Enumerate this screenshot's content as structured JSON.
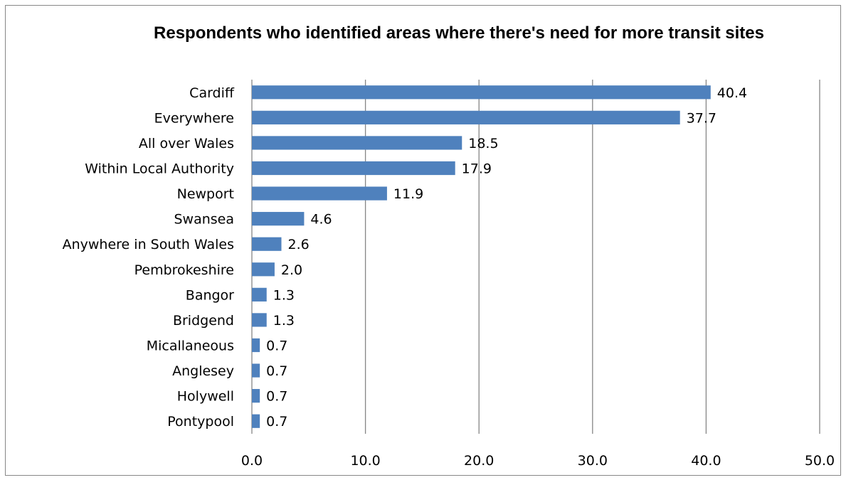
{
  "chart_data": {
    "type": "bar",
    "orientation": "horizontal",
    "title": "Respondents who identified areas where there's need for more transit sites",
    "xlabel": "",
    "ylabel": "",
    "xlim": [
      0,
      50
    ],
    "x_ticks": [
      "0.0",
      "10.0",
      "20.0",
      "30.0",
      "40.0",
      "50.0"
    ],
    "grid": "vertical",
    "legend": "none",
    "bar_color": "#4F81BD",
    "categories": [
      "Cardiff",
      "Everywhere",
      "All over Wales",
      "Within Local Authority",
      "Newport",
      "Swansea",
      "Anywhere in South Wales",
      "Pembrokeshire",
      "Bangor",
      "Bridgend",
      "Micallaneous",
      "Anglesey",
      "Holywell",
      "Pontypool"
    ],
    "values": [
      40.4,
      37.7,
      18.5,
      17.9,
      11.9,
      4.6,
      2.6,
      2.0,
      1.3,
      1.3,
      0.7,
      0.7,
      0.7,
      0.7
    ],
    "data_labels": [
      "40.4",
      "37.7",
      "18.5",
      "17.9",
      "11.9",
      "4.6",
      "2.6",
      "2.0",
      "1.3",
      "1.3",
      "0.7",
      "0.7",
      "0.7",
      "0.7"
    ]
  }
}
